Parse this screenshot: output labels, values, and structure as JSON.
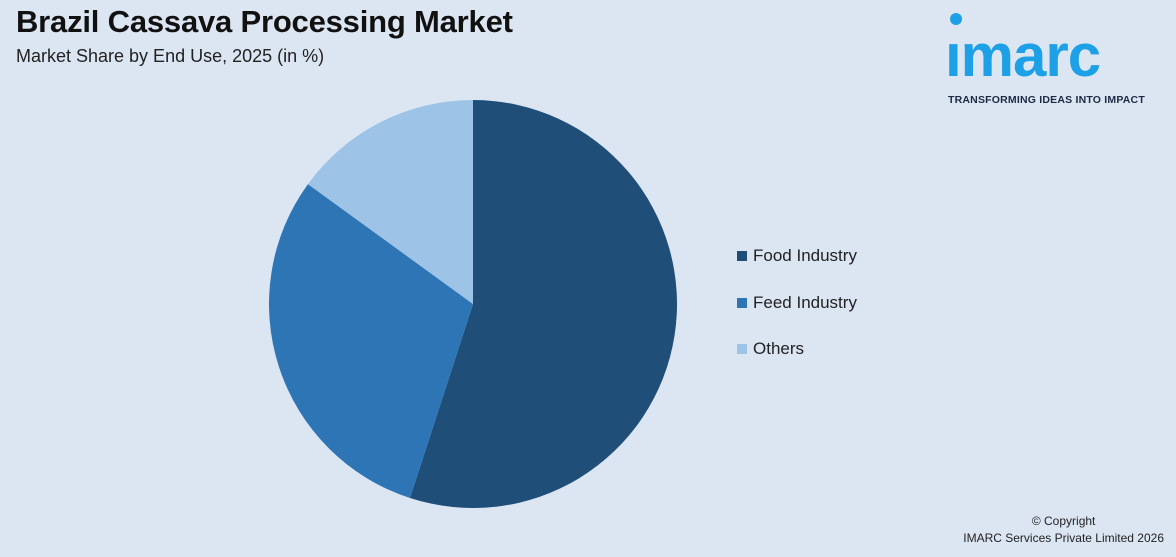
{
  "header": {
    "title": "Brazil Cassava Processing Market",
    "subtitle": "Market Share by End Use, 2025 (in %)"
  },
  "logo": {
    "word": "ımarc",
    "tagline": "TRANSFORMING IDEAS INTO IMPACT",
    "color": "#1ea0e6"
  },
  "chart_data": {
    "type": "pie",
    "title": "Brazil Cassava Processing Market",
    "subtitle": "Market Share by End Use, 2025 (in %)",
    "categories": [
      "Food Industry",
      "Feed Industry",
      "Others"
    ],
    "values": [
      55,
      30,
      15
    ],
    "colors": [
      "#1f4e79",
      "#2e75b6",
      "#9dc3e6"
    ],
    "start_angle_deg": 0,
    "direction": "clockwise",
    "legend_position": "right"
  },
  "footer": {
    "copyright_line1": "© Copyright",
    "copyright_line2": "IMARC Services Private Limited 2026"
  }
}
